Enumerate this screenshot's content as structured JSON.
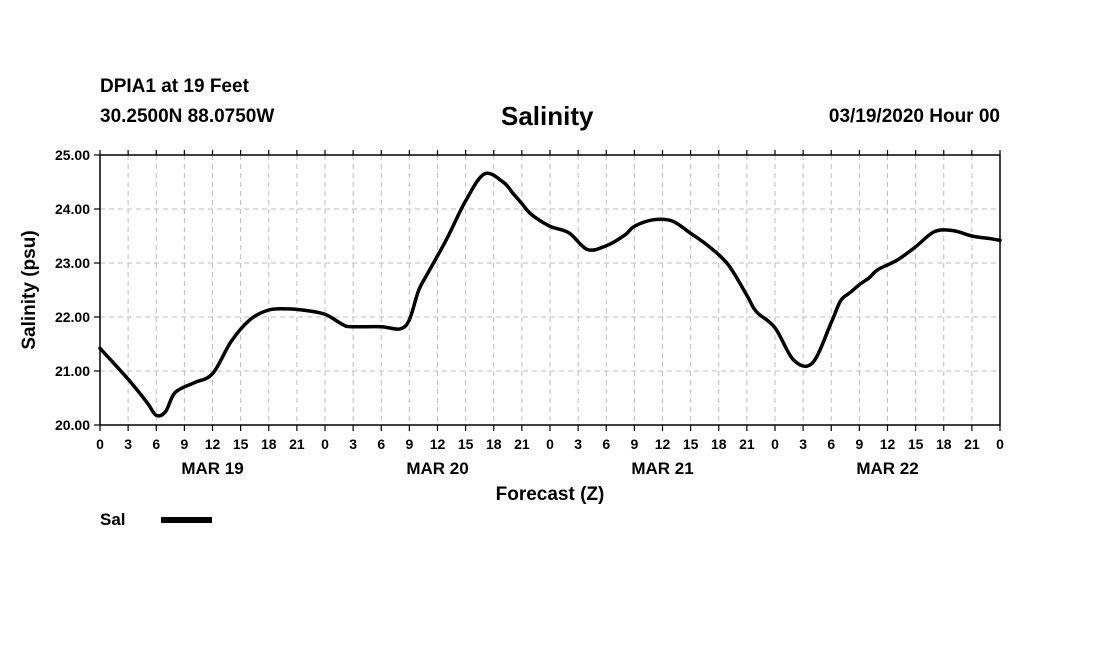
{
  "header": {
    "station": "DPIA1 at 19 Feet",
    "coords": "30.2500N 88.0750W",
    "title": "Salinity",
    "issued": "03/19/2020 Hour 00"
  },
  "legend": {
    "label": "Sal",
    "color": "#000000"
  },
  "chart_data": {
    "type": "line",
    "title": "Salinity",
    "xlabel": "Forecast (Z)",
    "ylabel": "Salinity (psu)",
    "ylim": [
      20,
      25
    ],
    "xlim_hours": [
      0,
      96
    ],
    "yticks": [
      "20.00",
      "21.00",
      "22.00",
      "23.00",
      "24.00",
      "25.00"
    ],
    "xtick_labels": [
      "0",
      "3",
      "6",
      "9",
      "12",
      "15",
      "18",
      "21",
      "0",
      "3",
      "6",
      "9",
      "12",
      "15",
      "18",
      "21",
      "0",
      "3",
      "6",
      "9",
      "12",
      "15",
      "18",
      "21",
      "0",
      "3",
      "6",
      "9",
      "12",
      "15",
      "18",
      "21",
      "0"
    ],
    "day_labels": [
      "MAR 19",
      "MAR 20",
      "MAR 21",
      "MAR 22"
    ],
    "grid": true,
    "legend_position": "bottom-left",
    "series": [
      {
        "name": "Sal",
        "color": "#000000",
        "x_hours": [
          0,
          3,
          5,
          6,
          7,
          8,
          10,
          12,
          14,
          16,
          18,
          20,
          22,
          24,
          26,
          27,
          30,
          32,
          33,
          34,
          35,
          37,
          39,
          41,
          43,
          44,
          45,
          46,
          48,
          50,
          52,
          54,
          56,
          57,
          59,
          61,
          63,
          65,
          67,
          69,
          70,
          72,
          74,
          76,
          78,
          79,
          80,
          81,
          82,
          83,
          85,
          87,
          89,
          91,
          93,
          95,
          96
        ],
        "values": [
          21.42,
          20.85,
          20.42,
          20.18,
          20.25,
          20.6,
          20.78,
          20.95,
          21.55,
          21.95,
          22.13,
          22.15,
          22.12,
          22.05,
          21.85,
          21.82,
          21.82,
          21.78,
          21.95,
          22.5,
          22.82,
          23.45,
          24.15,
          24.65,
          24.5,
          24.3,
          24.1,
          23.9,
          23.68,
          23.56,
          23.25,
          23.32,
          23.52,
          23.68,
          23.8,
          23.78,
          23.55,
          23.3,
          22.97,
          22.4,
          22.1,
          21.8,
          21.2,
          21.15,
          21.9,
          22.3,
          22.45,
          22.6,
          22.72,
          22.88,
          23.05,
          23.3,
          23.58,
          23.6,
          23.5,
          23.45,
          23.42
        ]
      }
    ]
  }
}
